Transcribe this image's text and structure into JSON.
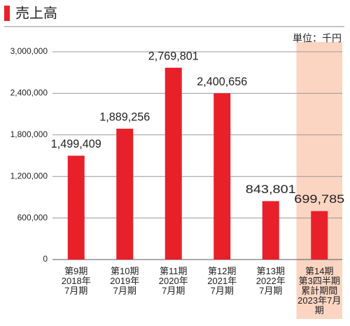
{
  "chart_data": {
    "type": "bar",
    "title": "売上高",
    "unit_label": "単位：千円",
    "categories": [
      "第9期\n2018年\n7月期",
      "第10期\n2019年\n7月期",
      "第11期\n2020年\n7月期",
      "第12期\n2021年\n7月期",
      "第13期\n2022年\n7月期",
      "第14期\n第3四半期\n累計期間\n2023年7月期"
    ],
    "values": [
      1499409,
      1889256,
      2769801,
      2400656,
      843801,
      699785
    ],
    "value_labels": [
      "1,499,409",
      "1,889,256",
      "2,769,801",
      "2,400,656",
      "843,801",
      "699,785"
    ],
    "color": "#e8202a",
    "ylim": [
      0,
      3000000
    ],
    "yticks": [
      0,
      {
        "value": 600000,
        "label": "600,000"
      },
      {
        "value": 1200000,
        "label": "1,200,000"
      },
      {
        "value": 1800000,
        "label": "1,800,000"
      },
      {
        "value": 2400000,
        "label": "2,400,000"
      },
      {
        "value": 3000000,
        "label": "3,000,000"
      }
    ],
    "grid": true
  }
}
